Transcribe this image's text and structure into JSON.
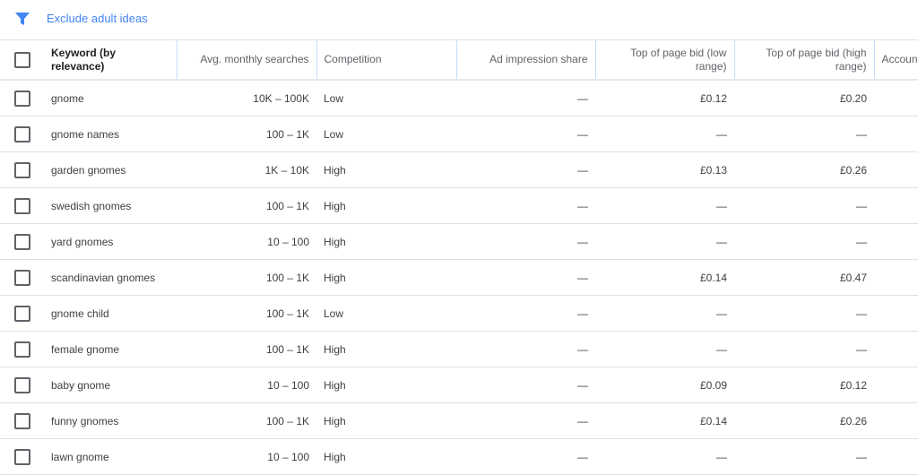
{
  "toolbar": {
    "filter_icon": "filter-icon",
    "exclude_label": "Exclude adult ideas",
    "accent": "#4285f4"
  },
  "table": {
    "headers": [
      "Keyword (by relevance)",
      "Avg. monthly searches",
      "Competition",
      "Ad impression share",
      "Top of page bid (low range)",
      "Top of page bid (high range)",
      "Accoun"
    ],
    "rows": [
      [
        "gnome",
        "10K – 100K",
        "Low",
        "—",
        "£0.12",
        "£0.20"
      ],
      [
        "gnome names",
        "100 – 1K",
        "Low",
        "—",
        "—",
        "—"
      ],
      [
        "garden gnomes",
        "1K – 10K",
        "High",
        "—",
        "£0.13",
        "£0.26"
      ],
      [
        "swedish gnomes",
        "100 – 1K",
        "High",
        "—",
        "—",
        "—"
      ],
      [
        "yard gnomes",
        "10 – 100",
        "High",
        "—",
        "—",
        "—"
      ],
      [
        "scandinavian gnomes",
        "100 – 1K",
        "High",
        "—",
        "£0.14",
        "£0.47"
      ],
      [
        "gnome child",
        "100 – 1K",
        "Low",
        "—",
        "—",
        "—"
      ],
      [
        "female gnome",
        "100 – 1K",
        "High",
        "—",
        "—",
        "—"
      ],
      [
        "baby gnome",
        "10 – 100",
        "High",
        "—",
        "£0.09",
        "£0.12"
      ],
      [
        "funny gnomes",
        "100 – 1K",
        "High",
        "—",
        "£0.14",
        "£0.26"
      ],
      [
        "lawn gnome",
        "10 – 100",
        "High",
        "—",
        "—",
        "—"
      ]
    ]
  }
}
